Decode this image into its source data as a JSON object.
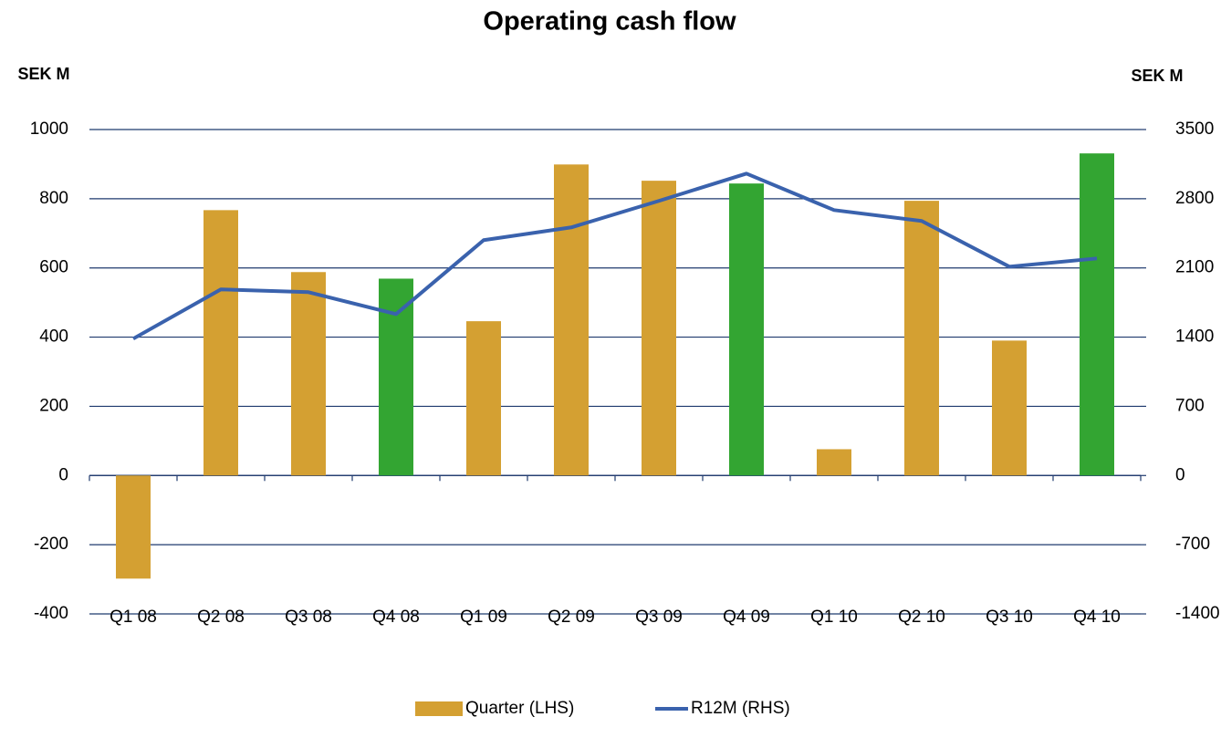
{
  "chart_data": {
    "type": "bar_line",
    "title": "Operating cash flow",
    "ylabel": "SEK M",
    "y2label": "SEK M",
    "categories": [
      "Q1 08",
      "Q2 08",
      "Q3 08",
      "Q4 08",
      "Q1 09",
      "Q2 09",
      "Q3 09",
      "Q4 09",
      "Q1 10",
      "Q2 10",
      "Q3 10",
      "Q4 10"
    ],
    "series": [
      {
        "name": "Quarter (LHS)",
        "type": "bar",
        "color": "#d4a032",
        "colors": [
          "#d4a032",
          "#d4a032",
          "#d4a032",
          "#33a532",
          "#d4a032",
          "#d4a032",
          "#d4a032",
          "#33a532",
          "#d4a032",
          "#d4a032",
          "#d4a032",
          "#33a532"
        ],
        "values": [
          -298,
          767,
          588,
          569,
          446,
          899,
          852,
          844,
          76,
          794,
          390,
          931
        ]
      },
      {
        "name": "R12M (RHS)",
        "type": "line",
        "axis": "y2",
        "color": "#3a62ad",
        "values": [
          1384,
          1883,
          1855,
          1633,
          2381,
          2510,
          2778,
          3054,
          2685,
          2575,
          2113,
          2196
        ]
      }
    ],
    "ylim": [
      -400,
      1000
    ],
    "yticks": [
      -400,
      -200,
      0,
      200,
      400,
      600,
      800,
      1000
    ],
    "y2lim": [
      -1400,
      3500
    ],
    "y2ticks": [
      -1400,
      -700,
      0,
      700,
      1400,
      2100,
      2800,
      3500
    ],
    "grid": true,
    "legend": "bottom"
  }
}
